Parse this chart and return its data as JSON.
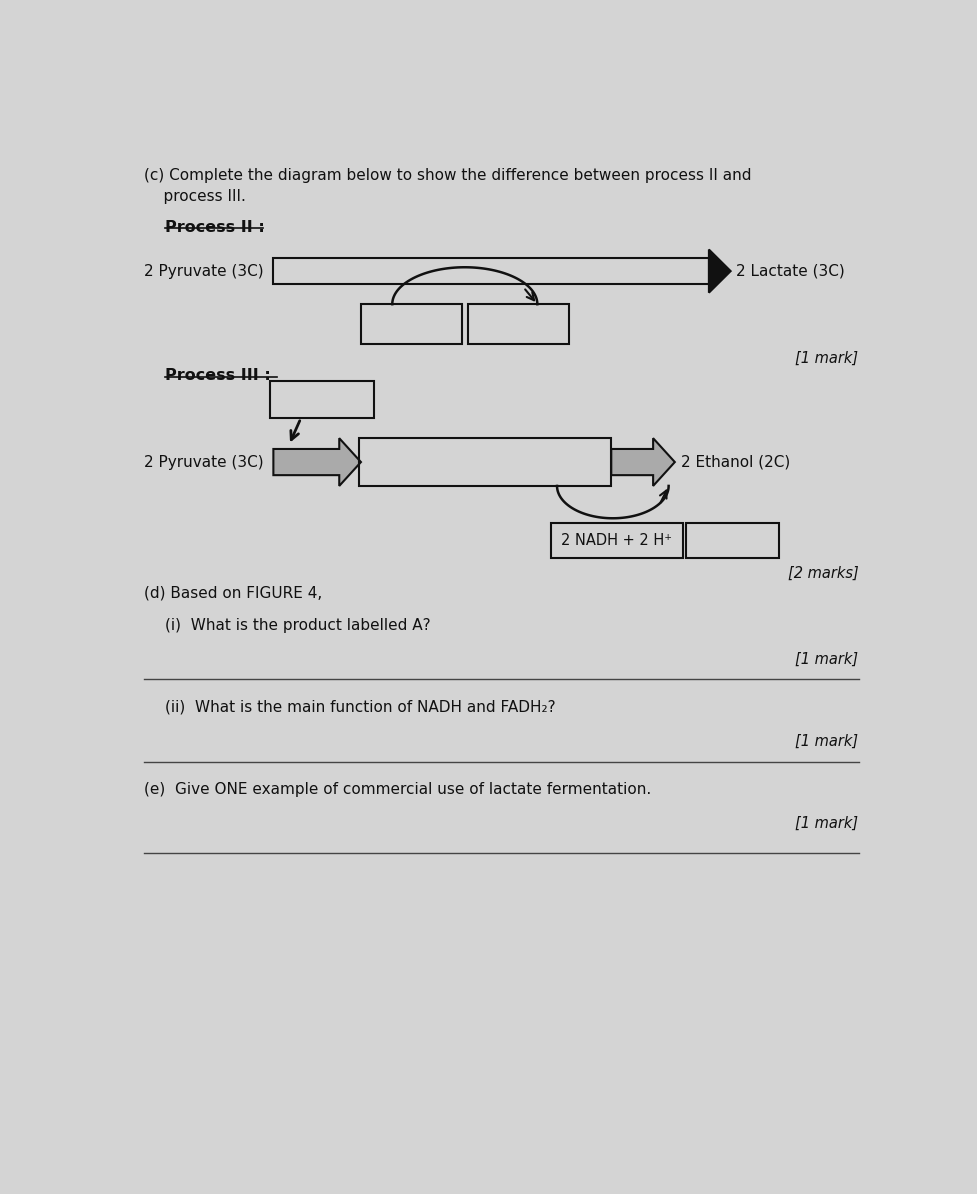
{
  "bg_color": "#d4d4d4",
  "title_line1": "(c) Complete the diagram below to show the difference between process II and",
  "title_line2": "    process III.",
  "process_II_label": "Process II :",
  "process_III_label": "Process III :",
  "pyruvate_label": "2 Pyruvate (3C)",
  "lactate_label": "2 Lactate (3C)",
  "ethanol_label": "2 Ethanol (2C)",
  "nadh_label": "2 NADH + 2 H⁺",
  "mark1": "[1 mark]",
  "marks2": "[2 marks]",
  "part_d": "(d) Based on FIGURE 4,",
  "part_d_i": "(i)  What is the product labelled A?",
  "part_d_i_mark": "[1 mark]",
  "part_d_ii": "(ii)  What is the main function of NADH and FADH₂?",
  "part_d_ii_mark": "[1 mark]",
  "part_e": "(e)  Give ONE example of commercial use of lactate fermentation.",
  "part_e_mark": "[1 mark]",
  "text_color": "#111111",
  "box_edge": "#111111",
  "arrow_color": "#111111"
}
